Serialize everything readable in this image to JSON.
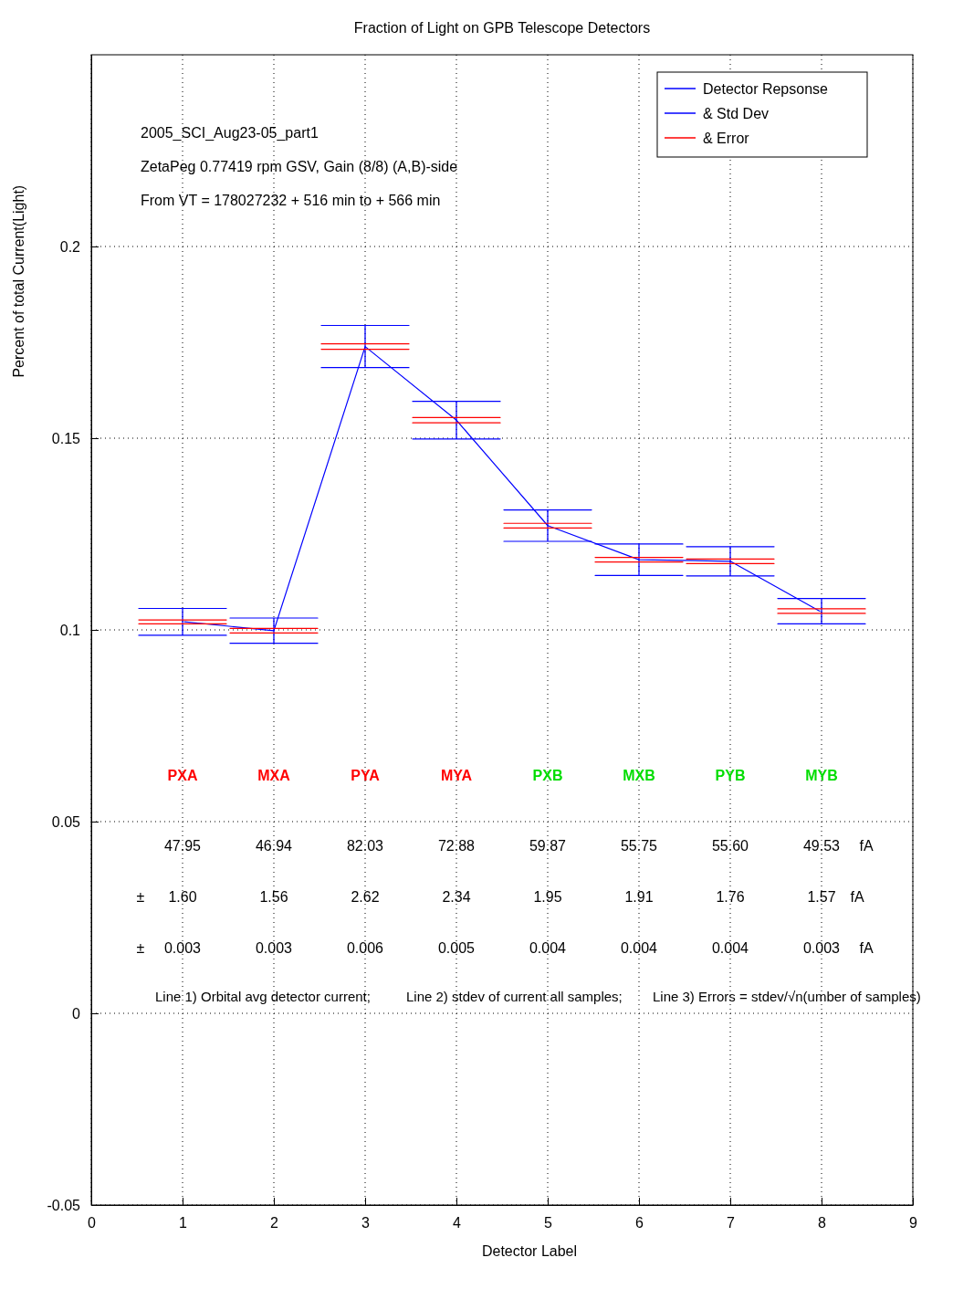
{
  "chart_data": {
    "type": "line",
    "title": "Fraction of Light on GPB Telescope Detectors",
    "xlabel": "Detector Label",
    "ylabel": "Percent of total Current(Light)",
    "x": [
      1,
      2,
      3,
      4,
      5,
      6,
      7,
      8
    ],
    "series": [
      {
        "name": "Detector Repsonse",
        "type": "line",
        "color": "#0000ff",
        "values": [
          0.1021,
          0.0998,
          0.1739,
          0.1547,
          0.1272,
          0.1183,
          0.1179,
          0.1049
        ],
        "errors": [
          0.0035,
          0.0033,
          0.0055,
          0.0049,
          0.0041,
          0.0041,
          0.0038,
          0.0033
        ]
      },
      {
        "name": "& Std Dev",
        "type": "line",
        "color": "#0000ff",
        "x": [
          0.5,
          1.5
        ],
        "values": [
          0.1056,
          0.1056
        ]
      },
      {
        "type": "line",
        "color": "#0000ff",
        "x": [
          0.5,
          1.5
        ],
        "values": [
          0.0986,
          0.0986
        ]
      },
      {
        "type": "line",
        "color": "#0000ff",
        "x": [
          1.5,
          2.5
        ],
        "values": [
          0.1031,
          0.1031
        ]
      },
      {
        "type": "line",
        "color": "#0000ff",
        "x": [
          1.5,
          2.5
        ],
        "values": [
          0.0965,
          0.0965
        ]
      },
      {
        "type": "line",
        "color": "#0000ff",
        "x": [
          2.5,
          3.5
        ],
        "values": [
          0.1794,
          0.1794
        ]
      },
      {
        "type": "line",
        "color": "#0000ff",
        "x": [
          2.5,
          3.5
        ],
        "values": [
          0.1684,
          0.1684
        ]
      },
      {
        "type": "line",
        "color": "#0000ff",
        "x": [
          3.5,
          4.5
        ],
        "values": [
          0.1596,
          0.1596
        ]
      },
      {
        "type": "line",
        "color": "#0000ff",
        "x": [
          3.5,
          4.5
        ],
        "values": [
          0.1498,
          0.1498
        ]
      },
      {
        "type": "line",
        "color": "#0000ff",
        "x": [
          4.5,
          5.5
        ],
        "values": [
          0.1313,
          0.1313
        ]
      },
      {
        "type": "line",
        "color": "#0000ff",
        "x": [
          4.5,
          5.5
        ],
        "values": [
          0.1231,
          0.1231
        ]
      },
      {
        "type": "line",
        "color": "#0000ff",
        "x": [
          5.5,
          6.5
        ],
        "values": [
          0.1224,
          0.1224
        ]
      },
      {
        "type": "line",
        "color": "#0000ff",
        "x": [
          5.5,
          6.5
        ],
        "values": [
          0.1142,
          0.1142
        ]
      },
      {
        "type": "line",
        "color": "#0000ff",
        "x": [
          6.5,
          7.5
        ],
        "values": [
          0.1217,
          0.1217
        ]
      },
      {
        "type": "line",
        "color": "#0000ff",
        "x": [
          6.5,
          7.5
        ],
        "values": [
          0.1141,
          0.1141
        ]
      },
      {
        "type": "line",
        "color": "#0000ff",
        "x": [
          7.5,
          8.5
        ],
        "values": [
          0.1082,
          0.1082
        ]
      },
      {
        "type": "line",
        "color": "#0000ff",
        "x": [
          7.5,
          8.5
        ],
        "values": [
          0.1016,
          0.1016
        ]
      },
      {
        "name": "& Error",
        "type": "line",
        "color": "#ff0000",
        "x": [
          0.5,
          1.5
        ],
        "values": [
          0.1026,
          0.1026
        ]
      },
      {
        "type": "line",
        "color": "#ff0000",
        "x": [
          0.5,
          1.5
        ],
        "values": [
          0.1016,
          0.1016
        ]
      },
      {
        "type": "line",
        "color": "#ff0000",
        "x": [
          1.5,
          2.5
        ],
        "values": [
          0.1004,
          0.1004
        ]
      },
      {
        "type": "line",
        "color": "#ff0000",
        "x": [
          1.5,
          2.5
        ],
        "values": [
          0.0992,
          0.0992
        ]
      },
      {
        "type": "line",
        "color": "#ff0000",
        "x": [
          2.5,
          3.5
        ],
        "values": [
          0.1746,
          0.1746
        ]
      },
      {
        "type": "line",
        "color": "#ff0000",
        "x": [
          2.5,
          3.5
        ],
        "values": [
          0.1732,
          0.1732
        ]
      },
      {
        "type": "line",
        "color": "#ff0000",
        "x": [
          3.5,
          4.5
        ],
        "values": [
          0.1554,
          0.1554
        ]
      },
      {
        "type": "line",
        "color": "#ff0000",
        "x": [
          3.5,
          4.5
        ],
        "values": [
          0.154,
          0.154
        ]
      },
      {
        "type": "line",
        "color": "#ff0000",
        "x": [
          4.5,
          5.5
        ],
        "values": [
          0.1278,
          0.1278
        ]
      },
      {
        "type": "line",
        "color": "#ff0000",
        "x": [
          4.5,
          5.5
        ],
        "values": [
          0.1266,
          0.1266
        ]
      },
      {
        "type": "line",
        "color": "#ff0000",
        "x": [
          5.5,
          6.5
        ],
        "values": [
          0.1189,
          0.1189
        ]
      },
      {
        "type": "line",
        "color": "#ff0000",
        "x": [
          5.5,
          6.5
        ],
        "values": [
          0.1177,
          0.1177
        ]
      },
      {
        "type": "line",
        "color": "#ff0000",
        "x": [
          6.5,
          7.5
        ],
        "values": [
          0.1185,
          0.1185
        ]
      },
      {
        "type": "line",
        "color": "#ff0000",
        "x": [
          6.5,
          7.5
        ],
        "values": [
          0.1173,
          0.1173
        ]
      },
      {
        "type": "line",
        "color": "#ff0000",
        "x": [
          7.5,
          8.5
        ],
        "values": [
          0.1055,
          0.1055
        ]
      },
      {
        "type": "line",
        "color": "#ff0000",
        "x": [
          7.5,
          8.5
        ],
        "values": [
          0.1043,
          0.1043
        ]
      }
    ],
    "xlim": [
      0,
      9
    ],
    "xticks": [
      0,
      1,
      2,
      3,
      4,
      5,
      6,
      7,
      8,
      9
    ],
    "ylim": [
      -0.05,
      0.25
    ],
    "yticks": [
      -0.05,
      0,
      0.05,
      0.1,
      0.15,
      0.2
    ],
    "grid": true,
    "legend": "top right",
    "annotations": [
      "2005_SCI_Aug23-05_part1",
      "ZetaPeg 0.77419 rpm GSV, Gain (8/8) (A,B)-side",
      "From VT = 178027232 + 516 min to + 566 min",
      "PXA",
      "MXA",
      "PYA",
      "MYA",
      "PXB",
      "MXB",
      "PYB",
      "MYB",
      "47.95",
      "46.94",
      "82.03",
      "72.88",
      "59.87",
      "55.75",
      "55.60",
      "49.53",
      "±",
      "1.60",
      "1.56",
      "2.62",
      "2.34",
      "1.95",
      "1.91",
      "1.76",
      "1.57",
      "±",
      "0.003",
      "0.003",
      "0.006",
      "0.005",
      "0.004",
      "0.004",
      "0.004",
      "0.003",
      "fA",
      "fA",
      "fA",
      "Line 1) Orbital avg detector current;",
      "Line 2) stdev of current all samples;",
      "Line 3) Errors = stdev/√n(umber of samples)"
    ]
  }
}
